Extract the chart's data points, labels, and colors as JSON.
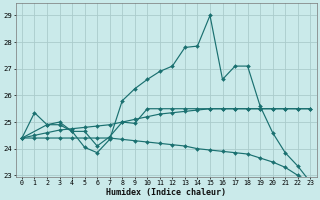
{
  "xlabel": "Humidex (Indice chaleur)",
  "background_color": "#caeaea",
  "grid_color": "#aacccc",
  "line_color": "#1a7070",
  "xlim": [
    -0.5,
    23.5
  ],
  "ylim": [
    22.95,
    29.45
  ],
  "yticks": [
    23,
    24,
    25,
    26,
    27,
    28,
    29
  ],
  "xticks": [
    0,
    1,
    2,
    3,
    4,
    5,
    6,
    7,
    8,
    9,
    10,
    11,
    12,
    13,
    14,
    15,
    16,
    17,
    18,
    19,
    20,
    21,
    22,
    23
  ],
  "curve1_x": [
    0,
    1,
    2,
    3,
    4,
    5,
    6,
    7,
    8,
    9,
    10,
    11,
    12,
    13,
    14,
    15,
    16,
    17,
    18,
    19,
    20,
    21,
    22,
    23
  ],
  "curve1_y": [
    24.4,
    25.35,
    24.9,
    24.9,
    24.65,
    24.05,
    23.85,
    24.35,
    25.8,
    26.25,
    26.6,
    26.9,
    27.1,
    27.8,
    27.85,
    29.0,
    26.6,
    27.1,
    27.1,
    25.6,
    24.6,
    23.85,
    23.35,
    22.75
  ],
  "curve2_x": [
    0,
    1,
    2,
    3,
    4,
    5,
    6,
    7,
    8,
    9,
    10,
    11,
    12,
    13,
    14,
    15,
    16,
    17,
    18,
    19,
    20,
    21,
    22,
    23
  ],
  "curve2_y": [
    24.4,
    24.5,
    24.6,
    24.7,
    24.75,
    24.8,
    24.85,
    24.9,
    25.0,
    25.1,
    25.2,
    25.3,
    25.35,
    25.4,
    25.45,
    25.5,
    25.5,
    25.5,
    25.5,
    25.5,
    25.5,
    25.5,
    25.5,
    25.5
  ],
  "curve3_x": [
    0,
    1,
    2,
    3,
    4,
    5,
    6,
    7,
    8,
    9,
    10,
    11,
    12,
    13,
    14,
    15,
    16,
    17,
    18,
    19,
    20,
    21,
    22,
    23
  ],
  "curve3_y": [
    24.4,
    24.4,
    24.4,
    24.4,
    24.4,
    24.4,
    24.4,
    24.4,
    24.35,
    24.3,
    24.25,
    24.2,
    24.15,
    24.1,
    24.0,
    23.95,
    23.9,
    23.85,
    23.8,
    23.65,
    23.5,
    23.3,
    23.0,
    22.75
  ],
  "curve4_x": [
    0,
    2,
    3,
    4,
    5,
    6,
    7,
    8,
    9,
    10,
    11,
    12,
    13,
    14,
    15,
    16,
    17,
    18,
    19,
    20,
    21,
    22,
    23
  ],
  "curve4_y": [
    24.4,
    24.9,
    25.0,
    24.65,
    24.65,
    24.1,
    24.45,
    25.0,
    24.95,
    25.5,
    25.5,
    25.5,
    25.5,
    25.5,
    25.5,
    25.5,
    25.5,
    25.5,
    25.5,
    25.5,
    25.5,
    25.5,
    25.5
  ]
}
